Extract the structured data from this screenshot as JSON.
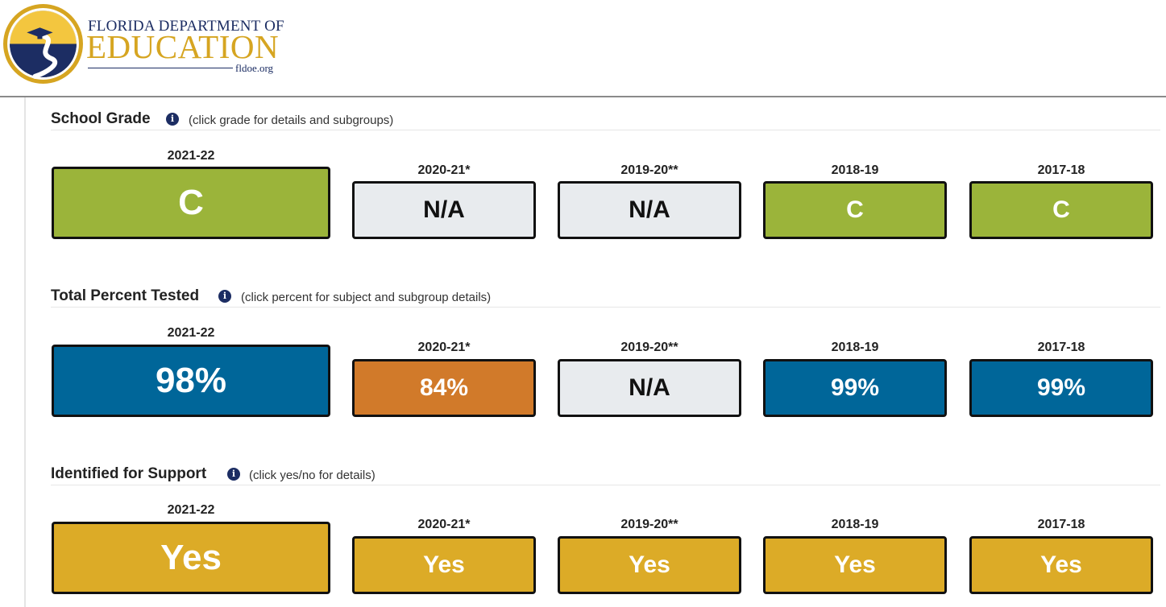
{
  "header": {
    "logo_line1": "FLORIDA DEPARTMENT OF",
    "logo_line2": "EDUCATION",
    "logo_url": "fldoe.org"
  },
  "colors": {
    "grade_c": "#9bb43a",
    "na": "#e8ebee",
    "tested_high": "#006699",
    "tested_low": "#d17a2a",
    "support_yes": "#dcab27",
    "brand_navy": "#1c2d63",
    "brand_gold": "#d6a521"
  },
  "sections": [
    {
      "title": "School Grade",
      "note": "(click grade for details and subgroups)",
      "cards": [
        {
          "year": "2021-22",
          "value": "C"
        },
        {
          "year": "2020-21*",
          "value": "N/A"
        },
        {
          "year": "2019-20**",
          "value": "N/A"
        },
        {
          "year": "2018-19",
          "value": "C"
        },
        {
          "year": "2017-18",
          "value": "C"
        }
      ]
    },
    {
      "title": "Total Percent Tested",
      "note": "(click percent for subject and subgroup details)",
      "cards": [
        {
          "year": "2021-22",
          "value": "98%"
        },
        {
          "year": "2020-21*",
          "value": "84%"
        },
        {
          "year": "2019-20**",
          "value": "N/A"
        },
        {
          "year": "2018-19",
          "value": "99%"
        },
        {
          "year": "2017-18",
          "value": "99%"
        }
      ]
    },
    {
      "title": "Identified for Support",
      "note": "(click yes/no for details)",
      "cards": [
        {
          "year": "2021-22",
          "value": "Yes"
        },
        {
          "year": "2020-21*",
          "value": "Yes"
        },
        {
          "year": "2019-20**",
          "value": "Yes"
        },
        {
          "year": "2018-19",
          "value": "Yes"
        },
        {
          "year": "2017-18",
          "value": "Yes"
        }
      ]
    }
  ]
}
